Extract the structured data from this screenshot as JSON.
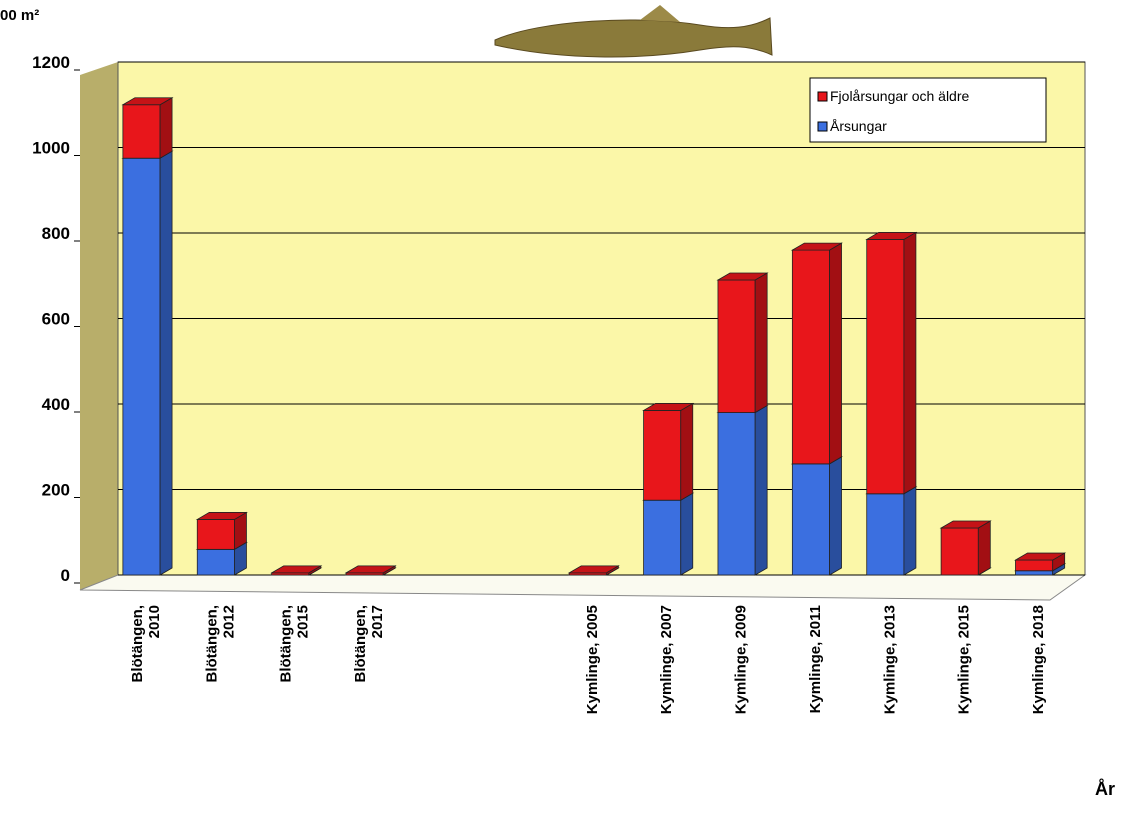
{
  "chart_data": {
    "type": "bar",
    "stacked": true,
    "y_label": "00 m²",
    "x_label": "År",
    "categories": [
      "Blötängen,\n2010",
      "Blötängen,\n2012",
      "Blötängen,\n2015",
      "Blötängen,\n2017",
      null,
      null,
      "Kymlinge, 2005",
      "Kymlinge, 2007",
      "Kymlinge, 2009",
      "Kymlinge, 2011",
      "Kymlinge, 2013",
      "Kymlinge, 2015",
      "Kymlinge, 2018"
    ],
    "series": [
      {
        "name": "Årsungar",
        "color": "#3b6fe0",
        "values": [
          975,
          60,
          0,
          0,
          null,
          null,
          0,
          175,
          380,
          260,
          190,
          0,
          10
        ]
      },
      {
        "name": "Fjolårsungar och äldre",
        "color": "#e8161b",
        "values": [
          125,
          70,
          5,
          5,
          null,
          null,
          5,
          210,
          310,
          500,
          595,
          110,
          25
        ]
      }
    ],
    "ylim": [
      0,
      1200
    ],
    "yticks": [
      0,
      200,
      400,
      600,
      800,
      1000,
      1200
    ],
    "grid": true
  }
}
